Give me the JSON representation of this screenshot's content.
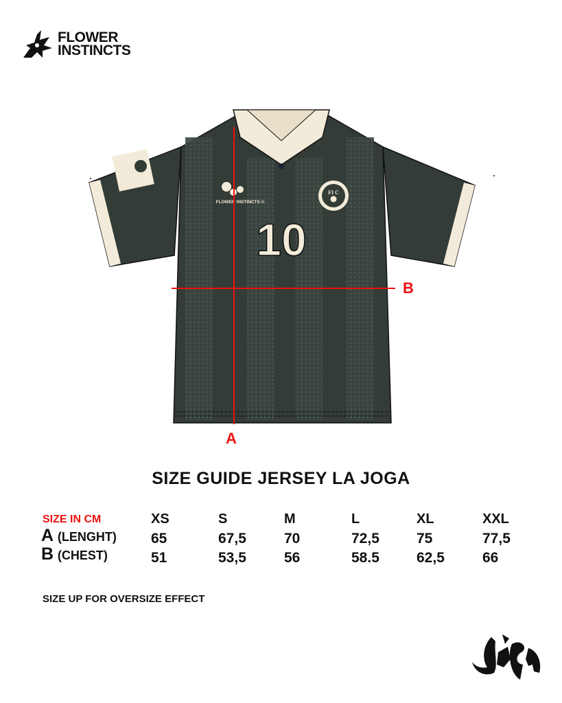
{
  "brand": {
    "name_line1": "FLOWER",
    "name_line2": "INSTINCTS"
  },
  "jersey": {
    "number": "10",
    "chest_brand": "FLOWER INSTINCTS ©",
    "crest_letters": "FI C",
    "colors": {
      "body": "#333c37",
      "trim": "#f3ebd9",
      "measure_line": "#ee1111"
    }
  },
  "dimensions": {
    "a_label": "A",
    "b_label": "B"
  },
  "title": "SIZE GUIDE JERSEY LA JOGA",
  "size_table": {
    "unit_label": "SIZE IN CM",
    "sizes": [
      "XS",
      "S",
      "M",
      "L",
      "XL",
      "XXL"
    ],
    "rows": [
      {
        "letter": "A",
        "name": "(LENGHT)",
        "values": [
          "65",
          "67,5",
          "70",
          "72,5",
          "75",
          "77,5"
        ]
      },
      {
        "letter": "B",
        "name": "(CHEST)",
        "values": [
          "51",
          "53,5",
          "56",
          "58.5",
          "62,5",
          "66"
        ]
      }
    ]
  },
  "note": "SIZE UP FOR OVERSIZE EFFECT",
  "footer_logo": {
    "text": "LA JOGA"
  }
}
